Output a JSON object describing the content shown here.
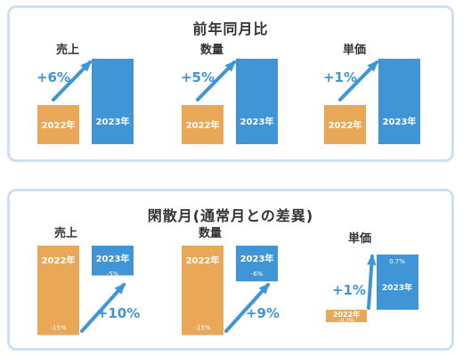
{
  "colors": {
    "orange": "#E8A857",
    "blue": "#3F95D6",
    "border": "#CFE0F0",
    "arrow": "#3F95D6"
  },
  "panels": {
    "top": {
      "title": "前年同月比"
    },
    "bottom": {
      "title": "閑散月(通常月との差異)"
    }
  },
  "chart_data": [
    {
      "type": "bar",
      "title": "前年同月比",
      "groups": [
        {
          "name": "売上",
          "change_label": "+6%",
          "bars": [
            {
              "label": "2022年",
              "value": 100
            },
            {
              "label": "2023年",
              "value": 106
            }
          ]
        },
        {
          "name": "数量",
          "change_label": "+5%",
          "bars": [
            {
              "label": "2022年",
              "value": 100
            },
            {
              "label": "2023年",
              "value": 105
            }
          ]
        },
        {
          "name": "単価",
          "change_label": "+1%",
          "bars": [
            {
              "label": "2022年",
              "value": 100
            },
            {
              "label": "2023年",
              "value": 101
            }
          ]
        }
      ]
    },
    {
      "type": "bar",
      "title": "閑散月(通常月との差異)",
      "groups": [
        {
          "name": "売上",
          "change_label": "+10%",
          "bars": [
            {
              "label": "2022年",
              "value": -15,
              "value_label": "-15%"
            },
            {
              "label": "2023年",
              "value": -5,
              "value_label": "-5%"
            }
          ]
        },
        {
          "name": "数量",
          "change_label": "+9%",
          "bars": [
            {
              "label": "2022年",
              "value": -15,
              "value_label": "-15%"
            },
            {
              "label": "2023年",
              "value": -6,
              "value_label": "-6%"
            }
          ]
        },
        {
          "name": "単価",
          "change_label": "+1%",
          "bars": [
            {
              "label": "2022年",
              "value": -0.3,
              "value_label": "-0.3%"
            },
            {
              "label": "2023年",
              "value": 0.7,
              "value_label": "0.7%"
            }
          ]
        }
      ]
    }
  ]
}
